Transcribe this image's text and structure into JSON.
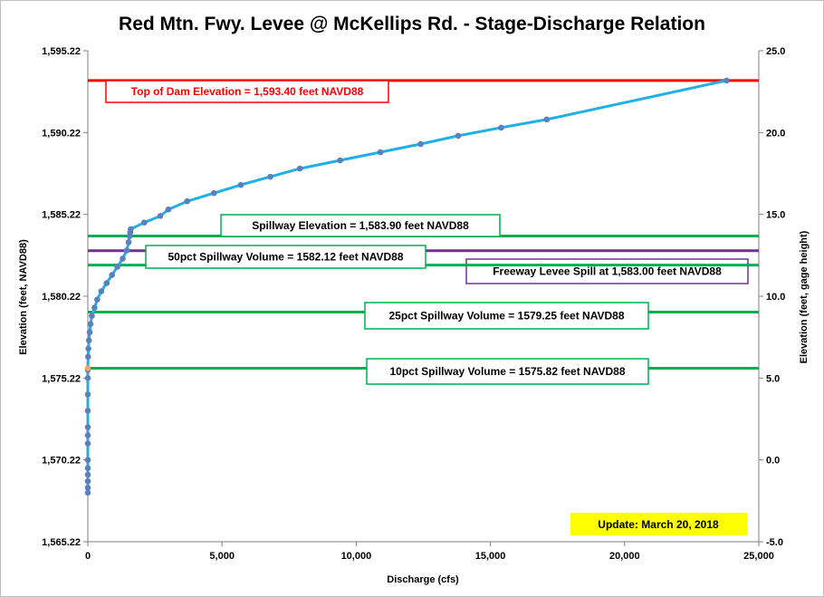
{
  "chart_data": {
    "type": "line",
    "title": "Red Mtn. Fwy. Levee @ McKellips Rd. - Stage-Discharge Relation",
    "xlabel": "Discharge  (cfs)",
    "ylabel_left": "Elevation  (feet, NAVD88)",
    "ylabel_right": "Elevation  (feet, gage height)",
    "xlim": [
      0,
      25000
    ],
    "ylim_left": [
      1565.22,
      1595.22
    ],
    "ylim_right": [
      -5.0,
      25.0
    ],
    "x_ticks": [
      "0",
      "5,000",
      "10,000",
      "15,000",
      "20,000",
      "25,000"
    ],
    "y_left_ticks": [
      "1,565.22",
      "1,570.22",
      "1,575.22",
      "1,580.22",
      "1,585.22",
      "1,590.22",
      "1,595.22"
    ],
    "y_right_ticks": [
      "-5.0",
      "0.0",
      "5.0",
      "10.0",
      "15.0",
      "20.0",
      "25.0"
    ],
    "grid": false,
    "colors": {
      "curve": "#1fb0e6",
      "points": "#5b7fbf",
      "highlight_point": "#f4a35a",
      "dam": "#ff0000",
      "spillway": "#00b050",
      "freeway": "#7030a0",
      "update_bg": "#ffff00"
    },
    "series": [
      {
        "x": [
          0,
          0,
          0,
          0,
          0,
          0,
          0,
          0,
          0,
          0,
          0,
          0,
          0,
          0,
          10,
          20,
          40,
          70,
          100,
          150,
          250,
          350,
          500,
          700,
          900,
          1100,
          1300,
          1450,
          1520,
          1560,
          1580,
          1600,
          2100,
          2700,
          3000,
          3700,
          4700,
          5700,
          6800,
          7900,
          9400,
          10900,
          12400,
          13800,
          15400,
          17100,
          23800
        ],
        "y": [
          1568.22,
          1568.52,
          1568.92,
          1569.32,
          1569.72,
          1570.22,
          1571.22,
          1571.72,
          1572.22,
          1573.22,
          1574.22,
          1575.22,
          1575.72,
          1575.82,
          1576.52,
          1577.02,
          1577.52,
          1578.02,
          1578.52,
          1579.02,
          1579.52,
          1580.02,
          1580.52,
          1581.02,
          1581.52,
          1582.02,
          1582.52,
          1583.02,
          1583.52,
          1583.9,
          1584.12,
          1584.32,
          1584.72,
          1585.12,
          1585.52,
          1586.02,
          1586.52,
          1587.02,
          1587.52,
          1588.02,
          1588.52,
          1589.02,
          1589.52,
          1590.02,
          1590.52,
          1591.02,
          1593.4
        ]
      }
    ],
    "reference_lines": [
      {
        "label": "Top of Dam Elevation = 1,593.40  feet NAVD88",
        "y": 1593.4,
        "color": "#ff0000"
      },
      {
        "label": "Spillway Elevation = 1,583.90  feet NAVD88",
        "y": 1583.9,
        "color": "#00b050"
      },
      {
        "label": "Freeway Levee Spill at 1,583.00  feet NAVD88",
        "y": 1583.0,
        "color": "#7030a0"
      },
      {
        "label": "50pct Spillway Volume = 1582.12  feet NAVD88",
        "y": 1582.12,
        "color": "#00b050"
      },
      {
        "label": "25pct Spillway Volume = 1579.25  feet NAVD88",
        "y": 1579.25,
        "color": "#00b050"
      },
      {
        "label": "10pct Spillway Volume = 1575.82  feet NAVD88",
        "y": 1575.82,
        "color": "#00b050"
      }
    ],
    "update_label": "Update: March 20, 2018"
  }
}
